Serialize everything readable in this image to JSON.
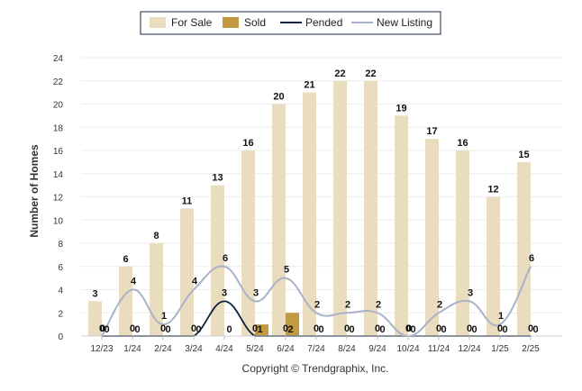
{
  "chart_data": {
    "type": "bar",
    "categories": [
      "12/23",
      "1/24",
      "2/24",
      "3/24",
      "4/24",
      "5/24",
      "6/24",
      "7/24",
      "8/24",
      "9/24",
      "10/24",
      "11/24",
      "12/24",
      "1/25",
      "2/25"
    ],
    "series": [
      {
        "name": "For Sale",
        "kind": "bar",
        "color": "#eadcbf",
        "values": [
          3,
          6,
          8,
          11,
          13,
          16,
          20,
          21,
          22,
          22,
          19,
          17,
          16,
          12,
          15
        ]
      },
      {
        "name": "Sold",
        "kind": "bar",
        "color": "#c39a3f",
        "values": [
          0,
          0,
          0,
          0,
          0,
          1,
          2,
          0,
          0,
          0,
          0,
          0,
          0,
          0,
          0
        ]
      },
      {
        "name": "Pended",
        "kind": "line",
        "color": "#0f2240",
        "values": [
          0,
          0,
          0,
          0,
          3,
          0,
          0,
          0,
          0,
          0,
          0,
          0,
          0,
          0,
          0
        ]
      },
      {
        "name": "New Listing",
        "kind": "line",
        "color": "#a9b2c8",
        "values": [
          0,
          4,
          1,
          4,
          6,
          3,
          5,
          2,
          2,
          2,
          0,
          2,
          3,
          1,
          6
        ]
      }
    ],
    "ylabel": "Number of Homes",
    "xlabel": "",
    "ylim": [
      0,
      24
    ],
    "yticks": [
      "0",
      "2",
      "4",
      "6",
      "8",
      "10",
      "12",
      "14",
      "16",
      "18",
      "20",
      "22",
      "24"
    ],
    "legend_position": "top-center",
    "grid": true
  },
  "footer": {
    "copyright": "Copyright © Trendgraphix, Inc."
  }
}
